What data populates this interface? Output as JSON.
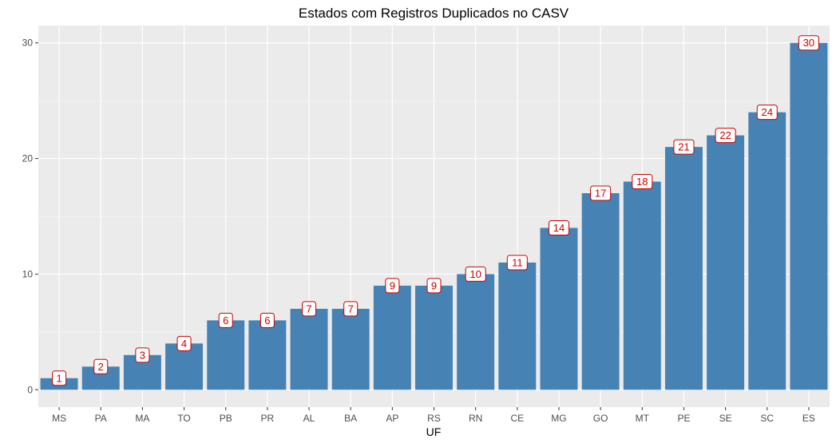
{
  "chart_data": {
    "type": "bar",
    "title": "Estados com Registros Duplicados no CASV",
    "xlabel": "UF",
    "ylabel": "",
    "categories": [
      "MS",
      "PA",
      "MA",
      "TO",
      "PB",
      "PR",
      "AL",
      "BA",
      "AP",
      "RS",
      "RN",
      "CE",
      "MG",
      "GO",
      "MT",
      "PE",
      "SE",
      "SC",
      "ES"
    ],
    "values": [
      1,
      2,
      3,
      4,
      6,
      6,
      7,
      7,
      9,
      9,
      10,
      11,
      14,
      17,
      18,
      21,
      22,
      24,
      30
    ],
    "ylim": [
      -1.5,
      31.5
    ],
    "yticks": [
      0,
      10,
      20,
      30
    ],
    "grid": true,
    "legend": "none",
    "colors": {
      "bar": "#4682b4",
      "panel": "#ebebeb",
      "grid_major": "#ffffff",
      "grid_minor": "#f5f5f5",
      "label_text": "#cc0000",
      "label_border": "#cc0000",
      "label_fill": "#ffffff"
    }
  }
}
